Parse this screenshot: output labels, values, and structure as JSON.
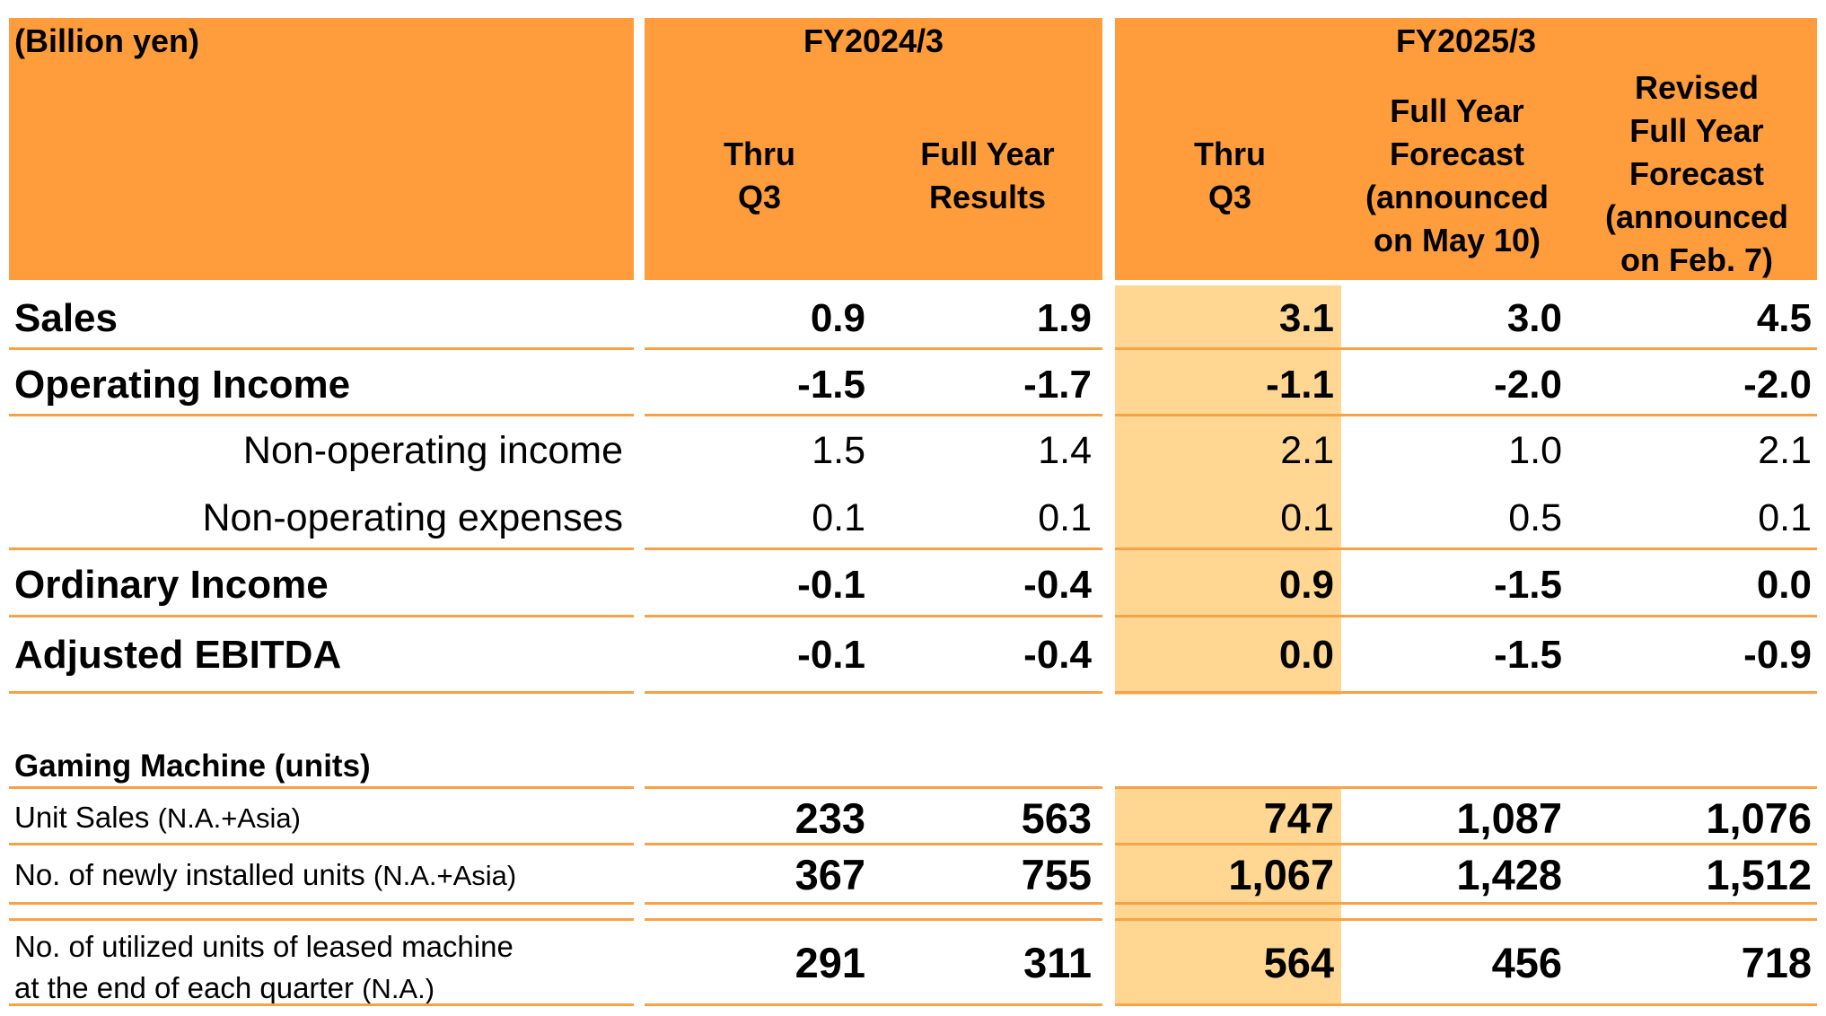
{
  "header": {
    "unit_label": "(Billion yen)",
    "fy2024_label": "FY2024/3",
    "fy2025_label": "FY2025/3",
    "fy2024_thru_q3": [
      "Thru",
      "Q3"
    ],
    "fy2024_full_year": [
      "Full Year",
      "Results"
    ],
    "fy2025_thru_q3": [
      "Thru",
      "Q3"
    ],
    "fy2025_full_year_forecast": [
      "Full Year",
      "Forecast",
      "(announced",
      "on May 10)"
    ],
    "fy2025_revised_forecast": [
      "Revised",
      "Full Year",
      "Forecast",
      "(announced",
      "on Feb. 7)"
    ]
  },
  "financials": [
    {
      "label": "Sales",
      "values": [
        "0.9",
        "1.9",
        "3.1",
        "3.0",
        "4.5"
      ]
    },
    {
      "label": "Operating Income",
      "values": [
        "-1.5",
        "-1.7",
        "-1.1",
        "-2.0",
        "-2.0"
      ]
    },
    {
      "label": "Non-operating income",
      "values": [
        "1.5",
        "1.4",
        "2.1",
        "1.0",
        "2.1"
      ]
    },
    {
      "label": "Non-operating expenses",
      "values": [
        "0.1",
        "0.1",
        "0.1",
        "0.5",
        "0.1"
      ]
    },
    {
      "label": "Ordinary Income",
      "values": [
        "-0.1",
        "-0.4",
        "0.9",
        "-1.5",
        "0.0"
      ]
    },
    {
      "label": "Adjusted EBITDA",
      "values": [
        "-0.1",
        "-0.4",
        "0.0",
        "-1.5",
        "-0.9"
      ]
    }
  ],
  "gaming": {
    "section_title": "Gaming Machine (units)",
    "rows": [
      {
        "label": "Unit Sales",
        "note": "(N.A.+Asia)",
        "values": [
          "233",
          "563",
          "747",
          "1,087",
          "1,076"
        ]
      },
      {
        "label": "No. of newly installed units",
        "note": "(N.A.+Asia)",
        "values": [
          "367",
          "755",
          "1,067",
          "1,428",
          "1,512"
        ]
      },
      {
        "label_line1": "No. of utilized units of leased machine",
        "label_line2": "at the end of each quarter",
        "note": "(N.A.)",
        "values": [
          "291",
          "311",
          "564",
          "456",
          "718"
        ]
      }
    ]
  },
  "colors": {
    "header_orange": "#ff9d3c",
    "highlight_column": "#ffd793",
    "rule_line": "#f7a247"
  }
}
